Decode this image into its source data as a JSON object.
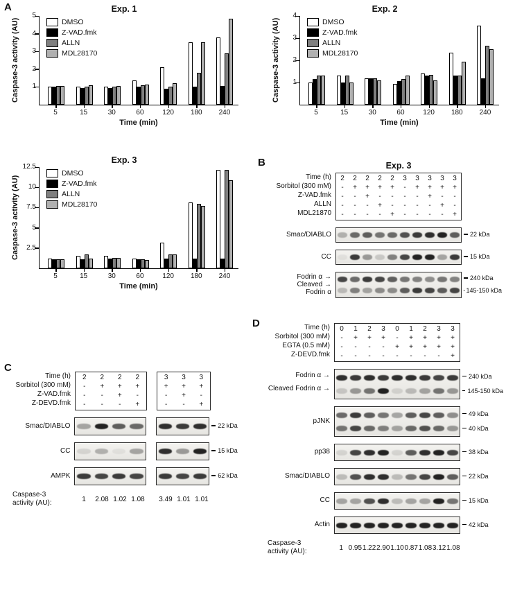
{
  "figure": {
    "panel_a_label": "A",
    "panel_b_label": "B",
    "panel_c_label": "C",
    "panel_d_label": "D"
  },
  "chart_data": [
    {
      "type": "bar",
      "title": "Exp. 1",
      "ylabel": "Caspase-3 activity (AU)",
      "xlabel": "Time  (min)",
      "categories": [
        "5",
        "15",
        "30",
        "60",
        "120",
        "180",
        "240"
      ],
      "ylim": [
        0,
        5
      ],
      "yticks": [
        1,
        2,
        3,
        4,
        5
      ],
      "legend_position": "top-left",
      "series": [
        {
          "name": "DMSO",
          "color": "#ffffff",
          "values": [
            1.0,
            1.0,
            1.0,
            1.35,
            2.1,
            3.5,
            3.8
          ]
        },
        {
          "name": "Z-VAD.fmk",
          "color": "#000000",
          "values": [
            1.0,
            0.95,
            0.95,
            1.0,
            0.9,
            1.0,
            1.05
          ]
        },
        {
          "name": "ALLN",
          "color": "#7f7f7f",
          "values": [
            1.05,
            1.0,
            1.0,
            1.1,
            1.0,
            1.8,
            2.9
          ]
        },
        {
          "name": "MDL28170",
          "color": "#b0b0b0",
          "values": [
            1.05,
            1.1,
            1.05,
            1.15,
            1.2,
            3.5,
            4.85
          ]
        }
      ]
    },
    {
      "type": "bar",
      "title": "Exp. 2",
      "ylabel": "Caspase-3 activity (AU)",
      "xlabel": "Time (min)",
      "categories": [
        "5",
        "15",
        "30",
        "60",
        "120",
        "180",
        "240"
      ],
      "ylim": [
        0,
        4
      ],
      "yticks": [
        1,
        2,
        3,
        4
      ],
      "legend_position": "top-left",
      "series": [
        {
          "name": "DMSO",
          "color": "#ffffff",
          "values": [
            1.0,
            1.3,
            1.2,
            0.95,
            1.4,
            2.35,
            3.55
          ]
        },
        {
          "name": "Z-VAD.fmk",
          "color": "#000000",
          "values": [
            1.15,
            1.0,
            1.2,
            1.05,
            1.3,
            1.3,
            1.2
          ]
        },
        {
          "name": "ALLN",
          "color": "#7f7f7f",
          "values": [
            1.3,
            1.3,
            1.2,
            1.15,
            1.35,
            1.3,
            2.65
          ]
        },
        {
          "name": "MDL28170",
          "color": "#b0b0b0",
          "values": [
            1.3,
            1.0,
            1.1,
            1.3,
            1.1,
            1.95,
            2.5
          ]
        }
      ]
    },
    {
      "type": "bar",
      "title": "Exp. 3",
      "ylabel": "Caspase-3 activity (AU)",
      "xlabel": "Time  (min)",
      "categories": [
        "5",
        "15",
        "30",
        "60",
        "120",
        "180",
        "240"
      ],
      "ylim": [
        0,
        12.5
      ],
      "yticks": [
        2.5,
        5,
        7.5,
        10,
        12.5
      ],
      "legend_position": "top-left",
      "series": [
        {
          "name": "DMSO",
          "color": "#ffffff",
          "values": [
            1.2,
            1.5,
            1.5,
            1.2,
            3.2,
            8.1,
            12.2
          ]
        },
        {
          "name": "Z-VAD.fmk",
          "color": "#000000",
          "values": [
            1.1,
            1.1,
            1.2,
            1.1,
            1.2,
            1.2,
            1.2
          ]
        },
        {
          "name": "ALLN",
          "color": "#7f7f7f",
          "values": [
            1.1,
            1.7,
            1.3,
            1.1,
            1.7,
            8.0,
            12.2
          ]
        },
        {
          "name": "MDL28170",
          "color": "#b0b0b0",
          "values": [
            1.1,
            1.2,
            1.3,
            1.0,
            1.7,
            7.7,
            10.9
          ]
        }
      ]
    }
  ],
  "panelB": {
    "title": "Exp. 3",
    "header_rows": [
      {
        "label": "Time (h)",
        "values": [
          [
            "2",
            "2",
            "2",
            "2",
            "2",
            "3",
            "3",
            "3",
            "3",
            "3"
          ]
        ]
      },
      {
        "label": "Sorbitol (300 mM)",
        "values": [
          [
            "-",
            "+",
            "+",
            "+",
            "+",
            "-",
            "+",
            "+",
            "+",
            "+"
          ]
        ]
      },
      {
        "label": "Z-VAD.fmk",
        "values": [
          [
            "-",
            "-",
            "+",
            "-",
            "-",
            "-",
            "-",
            "+",
            "-",
            "-"
          ]
        ]
      },
      {
        "label": "ALLN",
        "values": [
          [
            "-",
            "-",
            "-",
            "+",
            "-",
            "-",
            "-",
            "-",
            "+",
            "-"
          ]
        ]
      },
      {
        "label": "MDL21870",
        "values": [
          [
            "-",
            "-",
            "-",
            "-",
            "+",
            "-",
            "-",
            "-",
            "-",
            "+"
          ]
        ]
      }
    ],
    "blots": [
      {
        "left": "Smac/DIABLO",
        "rows": [
          {
            "right": "22 kDa",
            "bands": [
              [
                0.25,
                0.55,
                0.6,
                0.5,
                0.55,
                0.65,
                0.75,
                0.8,
                0.85,
                0.6
              ]
            ]
          }
        ]
      },
      {
        "left": "CC",
        "rows": [
          {
            "right": "15 kDa",
            "bands": [
              [
                0.05,
                0.75,
                0.35,
                0.15,
                0.45,
                0.7,
                0.85,
                0.85,
                0.3,
                0.75
              ]
            ]
          }
        ]
      },
      {
        "left_lines": [
          "Fodrin α →",
          "Cleaved →",
          "Fodrin α"
        ],
        "rows": [
          {
            "right": "240 kDa",
            "bands": [
              [
                0.7,
                0.55,
                0.75,
                0.7,
                0.6,
                0.5,
                0.45,
                0.4,
                0.5,
                0.45
              ]
            ]
          },
          {
            "right": "145-150 kDa",
            "bands": [
              [
                0.2,
                0.45,
                0.3,
                0.4,
                0.4,
                0.6,
                0.75,
                0.7,
                0.6,
                0.7
              ]
            ]
          }
        ]
      }
    ]
  },
  "panelC": {
    "header_rows": [
      {
        "label": "Time (h)",
        "values": [
          [
            "2",
            "2",
            "2",
            "2"
          ],
          [
            "3",
            "3",
            "3"
          ]
        ]
      },
      {
        "label": "Sorbitol (300 mM)",
        "values": [
          [
            "-",
            "+",
            "+",
            "+"
          ],
          [
            "+",
            "+",
            "+"
          ]
        ]
      },
      {
        "label": "Z-VAD.fmk",
        "values": [
          [
            "-",
            "-",
            "+",
            "-"
          ],
          [
            "-",
            "+",
            "-"
          ]
        ]
      },
      {
        "label": "Z-DEVD.fmk",
        "values": [
          [
            "-",
            "-",
            "-",
            "+"
          ],
          [
            "-",
            "-",
            "+"
          ]
        ]
      }
    ],
    "blots": [
      {
        "left": "Smac/DIABLO",
        "rows": [
          {
            "right": "22 kDa",
            "bands": [
              [
                0.3,
                0.85,
                0.6,
                0.55
              ],
              [
                0.8,
                0.75,
                0.8
              ]
            ]
          }
        ]
      },
      {
        "left": "CC",
        "rows": [
          {
            "right": "15 kDa",
            "bands": [
              [
                0.1,
                0.25,
                0.05,
                0.3
              ],
              [
                0.8,
                0.35,
                0.85
              ]
            ]
          }
        ]
      },
      {
        "left": "AMPK",
        "rows": [
          {
            "right": "62 kDa",
            "bands": [
              [
                0.75,
                0.7,
                0.75,
                0.7
              ],
              [
                0.75,
                0.7,
                0.75
              ]
            ]
          }
        ]
      }
    ],
    "caspase": {
      "label_lines": [
        "Caspase-3",
        "activity (AU):"
      ],
      "values": [
        [
          "1",
          "2.08",
          "1.02",
          "1.08"
        ],
        [
          "3.49",
          "1.01",
          "1.01"
        ]
      ]
    }
  },
  "panelD": {
    "header_rows": [
      {
        "label": "Time (h)",
        "values": [
          [
            "0",
            "1",
            "2",
            "3",
            "0",
            "1",
            "2",
            "3",
            "3"
          ]
        ]
      },
      {
        "label": "Sorbitol (300 mM)",
        "values": [
          [
            "-",
            "+",
            "+",
            "+",
            "-",
            "+",
            "+",
            "+",
            "+"
          ]
        ]
      },
      {
        "label": "EGTA (0.5 mM)",
        "values": [
          [
            "-",
            "-",
            "-",
            "-",
            "+",
            "+",
            "+",
            "+",
            "+"
          ]
        ]
      },
      {
        "label": "Z-DEVD.fmk",
        "values": [
          [
            "-",
            "-",
            "-",
            "-",
            "-",
            "-",
            "-",
            "-",
            "+"
          ]
        ]
      }
    ],
    "blots": [
      {
        "rows": [
          {
            "left_lines": [
              "Fodrin α →"
            ],
            "right": "240 kDa",
            "bands": [
              [
                0.8,
                0.75,
                0.8,
                0.75,
                0.8,
                0.8,
                0.75,
                0.7,
                0.75
              ]
            ]
          },
          {
            "left_lines": [
              "Cleaved Fodrin α →"
            ],
            "right": "145-150 kDa",
            "bands": [
              [
                0.15,
                0.35,
                0.5,
                0.85,
                0.1,
                0.2,
                0.3,
                0.5,
                0.35
              ]
            ]
          }
        ]
      },
      {
        "left": "pJNK",
        "rows": [
          {
            "right": "49 kDa",
            "bands": [
              [
                0.55,
                0.75,
                0.6,
                0.5,
                0.3,
                0.6,
                0.7,
                0.6,
                0.4
              ]
            ]
          },
          {
            "right": "40 kDa",
            "bands": [
              [
                0.5,
                0.7,
                0.55,
                0.45,
                0.3,
                0.55,
                0.65,
                0.55,
                0.35
              ]
            ]
          }
        ]
      },
      {
        "left": "pp38",
        "rows": [
          {
            "right": "38 kDa",
            "bands": [
              [
                0.1,
                0.7,
                0.8,
                0.85,
                0.1,
                0.6,
                0.8,
                0.85,
                0.7
              ]
            ]
          }
        ]
      },
      {
        "left": "Smac/DIABLO",
        "rows": [
          {
            "right": "22 kDa",
            "bands": [
              [
                0.2,
                0.65,
                0.8,
                0.8,
                0.2,
                0.5,
                0.7,
                0.85,
                0.6
              ]
            ]
          }
        ]
      },
      {
        "left": "CC",
        "rows": [
          {
            "right": "15 kDa",
            "bands": [
              [
                0.3,
                0.3,
                0.65,
                0.8,
                0.2,
                0.3,
                0.3,
                0.85,
                0.5
              ]
            ]
          }
        ]
      },
      {
        "left": "Actin",
        "rows": [
          {
            "right": "42 kDa",
            "bands": [
              [
                0.85,
                0.85,
                0.85,
                0.85,
                0.85,
                0.85,
                0.85,
                0.85,
                0.85
              ]
            ]
          }
        ]
      }
    ],
    "caspase": {
      "label_lines": [
        "Caspase-3",
        "activity (AU):"
      ],
      "values": [
        [
          "1",
          "0.95",
          "1.22",
          "2.90",
          "1.10",
          "0.87",
          "1.08",
          "3.12",
          "1.08"
        ]
      ]
    }
  }
}
